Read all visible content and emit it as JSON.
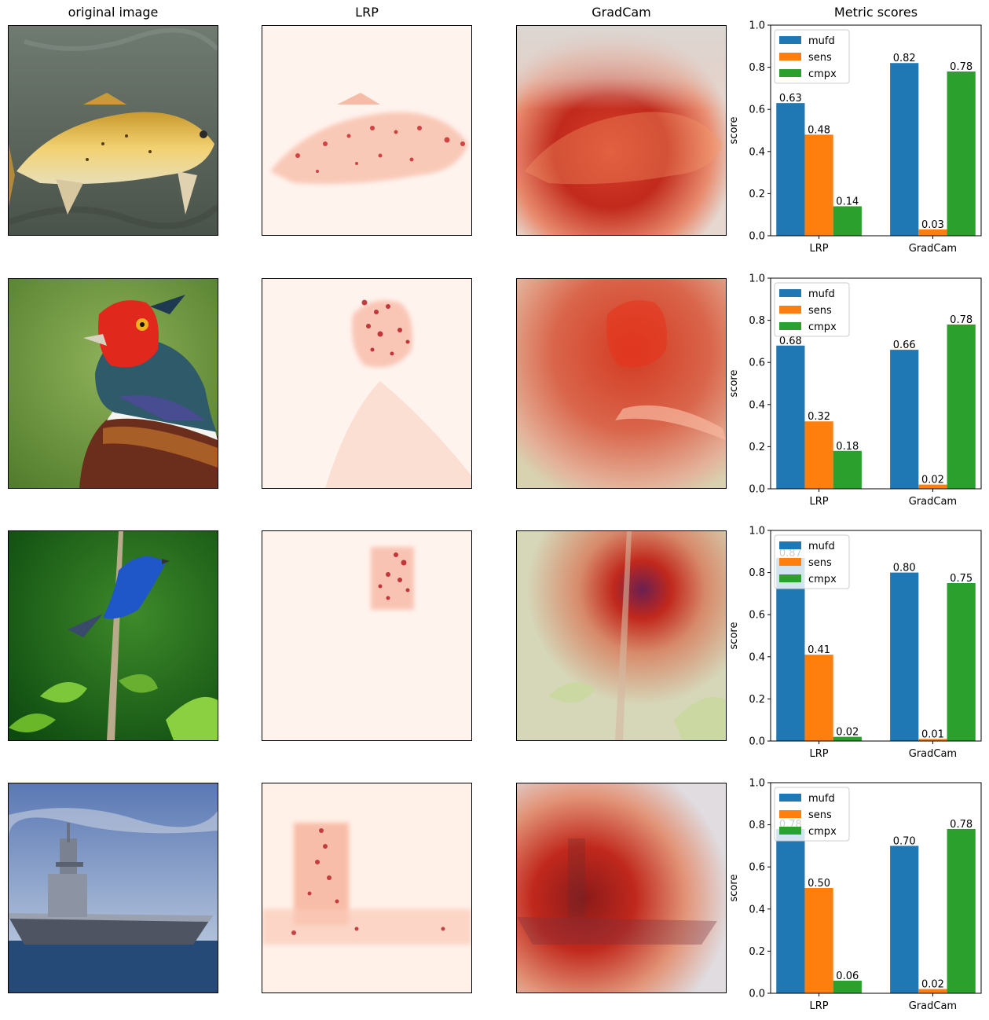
{
  "titles": {
    "col1": "original image",
    "col2": "LRP",
    "col3": "GradCam",
    "col4": "Metric scores"
  },
  "colors": {
    "mufd": "#1f77b4",
    "sens": "#ff7f0e",
    "cmpx": "#2ca02c"
  },
  "rows": [
    {
      "subject": "fish-icon"
    },
    {
      "subject": "pheasant-icon"
    },
    {
      "subject": "bluebird-icon"
    },
    {
      "subject": "ship-icon"
    }
  ],
  "chart_data": [
    {
      "type": "bar",
      "categories": [
        "LRP",
        "GradCam"
      ],
      "series": [
        {
          "name": "mufd",
          "values": [
            0.63,
            0.82
          ]
        },
        {
          "name": "sens",
          "values": [
            0.48,
            0.03
          ]
        },
        {
          "name": "cmpx",
          "values": [
            0.14,
            0.78
          ]
        }
      ],
      "ylabel": "score",
      "ylim": [
        0,
        1.0
      ],
      "yticks": [
        "0.0",
        "0.2",
        "0.4",
        "0.6",
        "0.8",
        "1.0"
      ],
      "legend": "top-left"
    },
    {
      "type": "bar",
      "categories": [
        "LRP",
        "GradCam"
      ],
      "series": [
        {
          "name": "mufd",
          "values": [
            0.68,
            0.66
          ]
        },
        {
          "name": "sens",
          "values": [
            0.32,
            0.02
          ]
        },
        {
          "name": "cmpx",
          "values": [
            0.18,
            0.78
          ]
        }
      ],
      "ylabel": "score",
      "ylim": [
        0,
        1.0
      ],
      "yticks": [
        "0.0",
        "0.2",
        "0.4",
        "0.6",
        "0.8",
        "1.0"
      ],
      "legend": "top-left"
    },
    {
      "type": "bar",
      "categories": [
        "LRP",
        "GradCam"
      ],
      "series": [
        {
          "name": "mufd",
          "values": [
            0.87,
            0.8
          ]
        },
        {
          "name": "sens",
          "values": [
            0.41,
            0.01
          ]
        },
        {
          "name": "cmpx",
          "values": [
            0.02,
            0.75
          ]
        }
      ],
      "ylabel": "score",
      "ylim": [
        0,
        1.0
      ],
      "yticks": [
        "0.0",
        "0.2",
        "0.4",
        "0.6",
        "0.8",
        "1.0"
      ],
      "legend": "top-left"
    },
    {
      "type": "bar",
      "categories": [
        "LRP",
        "GradCam"
      ],
      "series": [
        {
          "name": "mufd",
          "values": [
            0.78,
            0.7
          ]
        },
        {
          "name": "sens",
          "values": [
            0.5,
            0.02
          ]
        },
        {
          "name": "cmpx",
          "values": [
            0.06,
            0.78
          ]
        }
      ],
      "ylabel": "score",
      "ylim": [
        0,
        1.0
      ],
      "yticks": [
        "0.0",
        "0.2",
        "0.4",
        "0.6",
        "0.8",
        "1.0"
      ],
      "legend": "top-left"
    }
  ]
}
